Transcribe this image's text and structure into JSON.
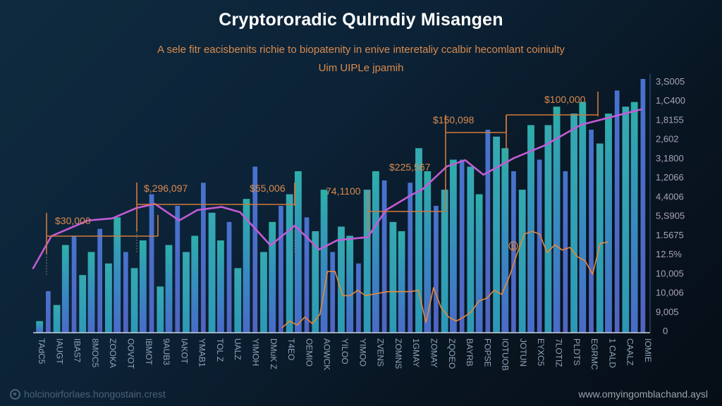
{
  "chart_data": {
    "type": "bar",
    "title": "Cryptororadic Qulrndiy Misangen",
    "subtitle": "A sele fitr eacisbenits richie to biopatenity in enive interetaliy ccalbir hecomlant coiniulty",
    "subtitle2": "Uim UIPLe jpamih",
    "xlabel": "",
    "ylabel": "",
    "grid": false,
    "legend": "none",
    "y_axis_side": "right",
    "y_tick_labels": [
      "3,S005",
      "1,C400",
      "1,8155",
      "2,602",
      "3,1800",
      "1,2066",
      "4,4006",
      "5,S905",
      "1.5675",
      "12.5%",
      "10,005",
      "10,006",
      "9,005",
      "0"
    ],
    "categories": [
      "TAdC5",
      "IAUGT",
      "IBAS7",
      "8MOC5",
      "ZOOKA",
      "OOVOT",
      "IBMOT",
      "9AUB3",
      "IAKOT",
      "YMAB1",
      "TOL Z",
      "UALZ",
      "YIMOH",
      "DMuK Z",
      "T4EO",
      "OEMIO",
      "AOWCK",
      "YILOO",
      "YIMOO",
      "ZVENS",
      "ZOMNS",
      "1GMAY",
      "ZOMAY",
      "ZQOEO",
      "BAYRB",
      "FOPSE",
      "IOTUOB",
      "JOTUN",
      "EYXC5",
      "7LOTIZ",
      "PLDTS",
      "EGRMC",
      "1 CALD",
      "CAALZ",
      "IOMIE"
    ],
    "series": [
      {
        "name": "bars",
        "color_range": [
          "#2bb3b0",
          "#4f7fd6"
        ],
        "values": [
          5,
          18,
          12,
          38,
          42,
          25,
          35,
          45,
          30,
          50,
          35,
          28,
          40,
          60,
          20,
          38,
          55,
          35,
          42,
          65,
          52,
          40,
          48,
          28,
          58,
          72,
          35,
          48,
          55,
          60,
          70,
          50,
          44,
          62,
          35,
          46,
          42,
          30,
          62,
          70,
          66,
          48,
          44,
          65,
          80,
          70,
          55,
          62,
          75,
          75,
          72,
          60,
          88,
          85,
          80,
          70,
          62,
          90,
          75,
          90,
          98,
          70,
          95,
          100,
          88,
          82,
          95,
          105,
          98,
          100,
          110
        ]
      },
      {
        "name": "trend",
        "color": "#c35bd6",
        "x": [
          0,
          3,
          9,
          13,
          17,
          20,
          24,
          27,
          31,
          34,
          39,
          43,
          47,
          50,
          55,
          58,
          62,
          64,
          68,
          71,
          74,
          79,
          84,
          90,
          100
        ],
        "values": [
          62,
          93,
          108,
          110,
          120,
          124,
          108,
          118,
          121,
          116,
          84,
          103,
          80,
          89,
          92,
          118,
          132,
          138,
          160,
          166,
          152,
          168,
          180,
          200,
          215
        ]
      },
      {
        "name": "price",
        "color": "#e8883a",
        "values": [
          0,
          5,
          2,
          8,
          3,
          10,
          42,
          42,
          24,
          24,
          28,
          24,
          25,
          26,
          27,
          27,
          27,
          27,
          28,
          4,
          30,
          15,
          8,
          5,
          8,
          12,
          20,
          22,
          28,
          25,
          38,
          55,
          70,
          72,
          70,
          56,
          62,
          58,
          60,
          53,
          50,
          40,
          63,
          64
        ]
      }
    ],
    "annotations": [
      {
        "label": "$30,000"
      },
      {
        "label": "$,296,097"
      },
      {
        "label": "$55,006"
      },
      {
        "label": "74,1100"
      },
      {
        "label": "$225,567"
      },
      {
        "label": "$150,098"
      },
      {
        "label": "$100,000"
      }
    ],
    "ylim": [
      0,
      215
    ]
  },
  "footer": {
    "left": "holcinoirforlaes.hongostain.crest",
    "right": "www.omyingomblachand.aysl"
  }
}
